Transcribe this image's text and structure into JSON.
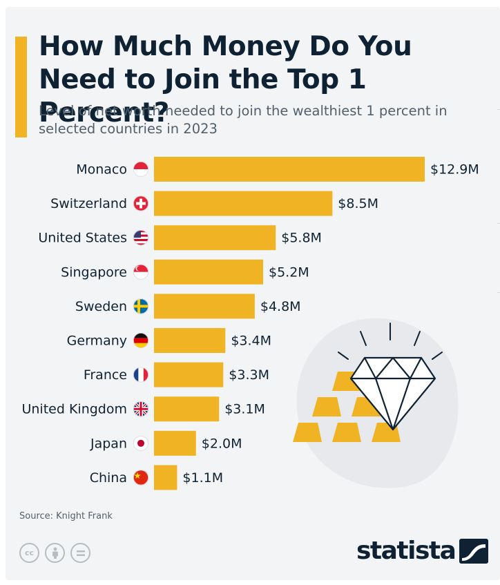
{
  "header": {
    "title": "How Much Money Do You Need to Join the Top 1 Percent?",
    "subtitle": "Level of net worth needed to join the wealthiest 1 percent in selected countries in 2023"
  },
  "footer": {
    "source": "Source: Knight Frank",
    "brand": "statista",
    "license_icons": [
      "cc-icon",
      "attribution-icon",
      "no-derivatives-icon"
    ]
  },
  "colors": {
    "bar": "#f0b323",
    "title": "#0e2233",
    "text": "#0e2233",
    "background": "#f3f4f6"
  },
  "chart_data": {
    "type": "bar",
    "orientation": "horizontal",
    "title": "How Much Money Do You Need to Join the Top 1 Percent?",
    "unit": "million USD",
    "categories": [
      "Monaco",
      "Switzerland",
      "United States",
      "Singapore",
      "Sweden",
      "Germany",
      "France",
      "United Kingdom",
      "Japan",
      "China"
    ],
    "values": [
      12.9,
      8.5,
      5.8,
      5.2,
      4.8,
      3.4,
      3.3,
      3.1,
      2.0,
      1.1
    ],
    "data_labels": [
      "$12.9M",
      "$8.5M",
      "$5.8M",
      "$5.2M",
      "$4.8M",
      "$3.4M",
      "$3.3M",
      "$3.1M",
      "$2.0M",
      "$1.1M"
    ],
    "flag_icons": [
      "monaco-flag-icon",
      "switzerland-flag-icon",
      "united-states-flag-icon",
      "singapore-flag-icon",
      "sweden-flag-icon",
      "germany-flag-icon",
      "france-flag-icon",
      "united-kingdom-flag-icon",
      "japan-flag-icon",
      "china-flag-icon"
    ],
    "xlim": [
      0,
      12.9
    ],
    "grid": false,
    "legend": "none"
  }
}
